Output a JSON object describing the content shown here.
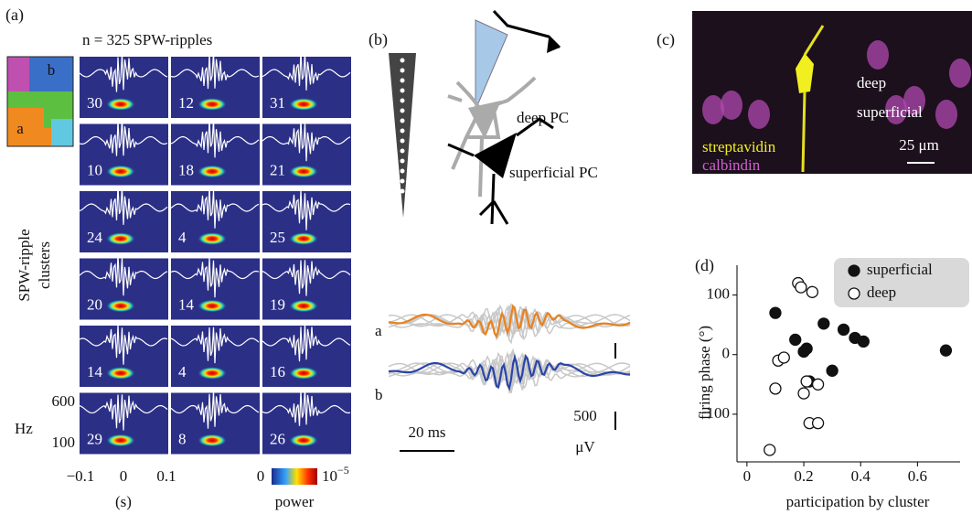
{
  "panel_a": {
    "label": "(a)",
    "title": "n = 325 SPW-ripples",
    "cluster_map_labels": [
      "b",
      "a"
    ],
    "y_label_lines": [
      "SPW-ripple",
      "clusters"
    ],
    "cluster_counts": [
      [
        30,
        12,
        31
      ],
      [
        10,
        18,
        21
      ],
      [
        24,
        4,
        25
      ],
      [
        20,
        14,
        19
      ],
      [
        14,
        4,
        16
      ],
      [
        29,
        8,
        26
      ]
    ],
    "freq_unit": "Hz",
    "freq_ticks": [
      "600",
      "100"
    ],
    "time_ticks": [
      "−0.1",
      "0",
      "0.1"
    ],
    "time_unit": "(s)",
    "colorbar_min": "0",
    "colorbar_max": {
      "base": "10",
      "exponent": "−5"
    },
    "colorbar_label": "power"
  },
  "panel_b": {
    "label": "(b)",
    "cell_labels": [
      "deep PC",
      "superficial PC"
    ],
    "trace_labels": [
      "a",
      "b"
    ],
    "time_scale": "20 ms",
    "voltage_scale": [
      "500",
      "μV"
    ]
  },
  "panel_c": {
    "label": "(c)",
    "layer_labels": [
      "deep",
      "superficial"
    ],
    "stain_labels": [
      "streptavidin",
      "calbindin"
    ],
    "scale_bar": "25 μm"
  },
  "chart_data": {
    "type": "scatter",
    "panel_label": "(d)",
    "x_label": "participation by cluster",
    "y_label": "firing phase (°)",
    "xlim": [
      -0.035,
      0.75
    ],
    "ylim": [
      -180,
      150
    ],
    "xticks": [
      0,
      0.2,
      0.4,
      0.6
    ],
    "yticks": [
      {
        "value": -100,
        "label": "−100"
      },
      0,
      100
    ],
    "legend": "upper right",
    "series": [
      {
        "name": "superficial",
        "color": "#111111",
        "hollow": false,
        "x": [
          0.1,
          0.17,
          0.21,
          0.2,
          0.22,
          0.27,
          0.3,
          0.34,
          0.38,
          0.41,
          0.7
        ],
        "y": [
          70,
          25,
          10,
          5,
          -45,
          52,
          -27,
          42,
          28,
          22,
          7
        ]
      },
      {
        "name": "deep",
        "color": "#111111",
        "hollow": true,
        "x": [
          0.08,
          0.1,
          0.11,
          0.13,
          0.18,
          0.19,
          0.23,
          0.2,
          0.21,
          0.25,
          0.22,
          0.25
        ],
        "y": [
          -160,
          -57,
          -10,
          -5,
          120,
          113,
          105,
          -65,
          -45,
          -50,
          -115,
          -115
        ]
      }
    ]
  }
}
